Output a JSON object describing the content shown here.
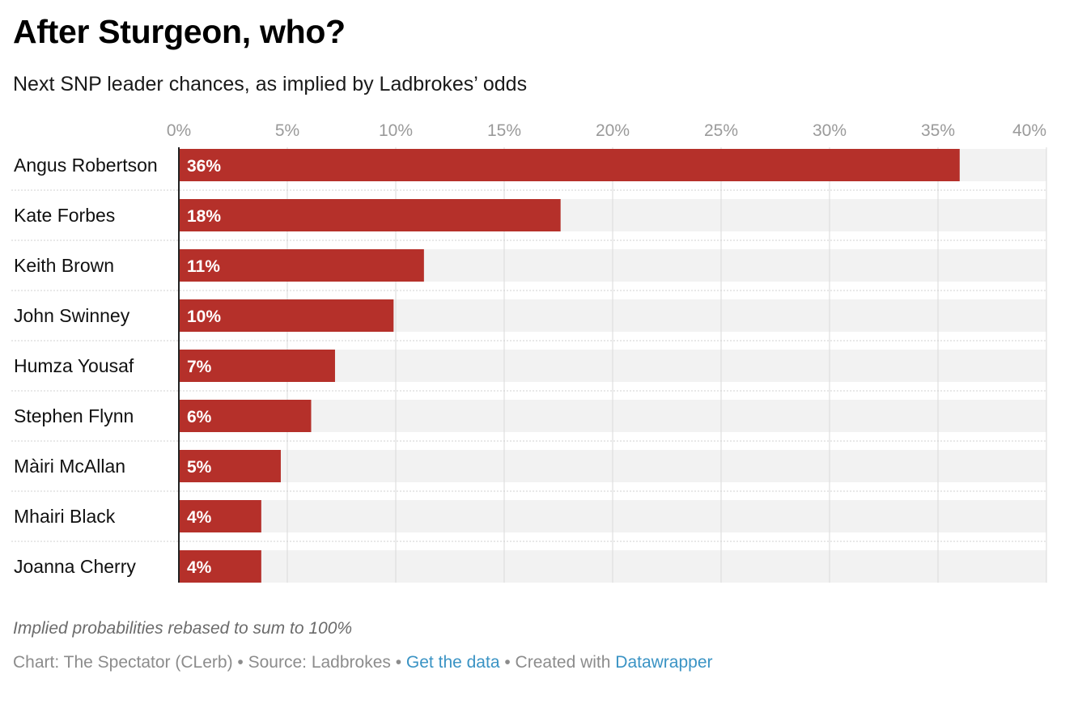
{
  "header": {
    "title": "After Sturgeon, who?",
    "subtitle": "Next SNP leader chances, as implied by Ladbrokes’ odds"
  },
  "notes": {
    "text": "Implied probabilities rebased to sum to 100%"
  },
  "footer": {
    "chart_credit": "Chart: The Spectator (CLerb)",
    "sep1": " • ",
    "source": "Source: Ladbrokes",
    "sep2": " • ",
    "get_data": "Get the data",
    "sep3": " • ",
    "created_with": "Created with ",
    "tool": "Datawrapper"
  },
  "colors": {
    "bar": "#b5302a",
    "bar_background": "#f2f2f2",
    "gridline": "#d9d9d9",
    "link": "#3a93c4"
  },
  "chart_data": {
    "type": "bar",
    "orientation": "horizontal",
    "title": "After Sturgeon, who?",
    "subtitle": "Next SNP leader chances, as implied by Ladbrokes’ odds",
    "categories": [
      "Angus Robertson",
      "Kate Forbes",
      "Keith Brown",
      "John Swinney",
      "Humza Yousaf",
      "Stephen Flynn",
      "Màiri McAllan",
      "Mhairi Black",
      "Joanna Cherry"
    ],
    "values": [
      36,
      17.6,
      11.3,
      9.9,
      7.2,
      6.1,
      4.7,
      3.8,
      3.8
    ],
    "value_labels": [
      "36%",
      "18%",
      "11%",
      "10%",
      "7%",
      "6%",
      "5%",
      "4%",
      "4%"
    ],
    "xlim": [
      0,
      40
    ],
    "x_ticks": [
      0,
      5,
      10,
      15,
      20,
      25,
      30,
      35,
      40
    ],
    "x_tick_labels": [
      "0%",
      "5%",
      "10%",
      "15%",
      "20%",
      "25%",
      "30%",
      "35%",
      "40%"
    ],
    "xlabel": "",
    "ylabel": "",
    "grid": true,
    "legend": "none"
  }
}
